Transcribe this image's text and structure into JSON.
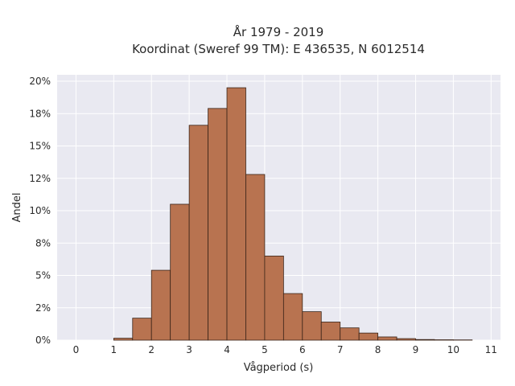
{
  "chart_data": {
    "type": "bar",
    "title_line1": "År 1979 - 2019",
    "title_line2": "Koordinat (Sweref 99 TM): E 436535, N 6012514",
    "xlabel": "Vågperiod (s)",
    "ylabel": "Andel",
    "xlim": [
      -0.5,
      11.25
    ],
    "ylim": [
      0,
      0.205
    ],
    "x_ticks": [
      0,
      1,
      2,
      3,
      4,
      5,
      6,
      7,
      8,
      9,
      10,
      11
    ],
    "x_tick_labels": [
      "0",
      "1",
      "2",
      "3",
      "4",
      "5",
      "6",
      "7",
      "8",
      "9",
      "10",
      "11"
    ],
    "y_ticks": [
      0,
      0.025,
      0.05,
      0.075,
      0.1,
      0.125,
      0.15,
      0.175,
      0.2
    ],
    "y_tick_labels": [
      "0%",
      "2%",
      "5%",
      "8%",
      "10%",
      "12%",
      "15%",
      "18%",
      "20%"
    ],
    "bin_width": 0.5,
    "bins": [
      {
        "start": 1.0,
        "value": 0.0015
      },
      {
        "start": 1.5,
        "value": 0.017
      },
      {
        "start": 2.0,
        "value": 0.054
      },
      {
        "start": 2.5,
        "value": 0.105
      },
      {
        "start": 3.0,
        "value": 0.166
      },
      {
        "start": 3.5,
        "value": 0.179
      },
      {
        "start": 4.0,
        "value": 0.195
      },
      {
        "start": 4.5,
        "value": 0.128
      },
      {
        "start": 5.0,
        "value": 0.065
      },
      {
        "start": 5.5,
        "value": 0.036
      },
      {
        "start": 6.0,
        "value": 0.022
      },
      {
        "start": 6.5,
        "value": 0.014
      },
      {
        "start": 7.0,
        "value": 0.0095
      },
      {
        "start": 7.5,
        "value": 0.0055
      },
      {
        "start": 8.0,
        "value": 0.0025
      },
      {
        "start": 8.5,
        "value": 0.0012
      },
      {
        "start": 9.0,
        "value": 0.0005
      },
      {
        "start": 9.5,
        "value": 0.0003
      },
      {
        "start": 10.0,
        "value": 0.0002
      }
    ],
    "grid": true,
    "colors": {
      "bar_fill": "#b87350",
      "bar_stroke": "#3a2418",
      "plot_bg": "#e9e9f1",
      "grid": "#ffffff"
    }
  }
}
